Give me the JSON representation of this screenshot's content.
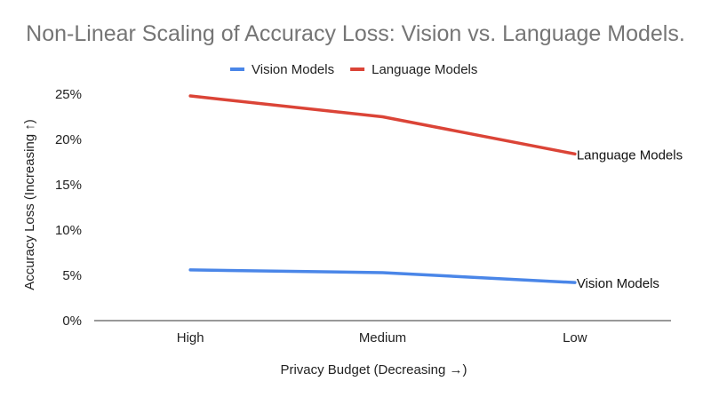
{
  "chart_data": {
    "type": "line",
    "title": "Non-Linear Scaling of Accuracy Loss: Vision vs. Language Models.",
    "xlabel": "Privacy Budget (Decreasing →)",
    "ylabel": "Accuracy Loss (Increasing ↑)",
    "categories": [
      "High",
      "Medium",
      "Low"
    ],
    "ylim": [
      0,
      25
    ],
    "yticks": [
      "0%",
      "5%",
      "10%",
      "15%",
      "20%",
      "25%"
    ],
    "grid": false,
    "legend_position": "top",
    "series": [
      {
        "name": "Vision Models",
        "values": [
          5.6,
          5.3,
          4.2
        ],
        "color": "#4A86E8",
        "end_label": "Vision Models"
      },
      {
        "name": "Language Models",
        "values": [
          24.8,
          22.5,
          18.4
        ],
        "color": "#DB4437",
        "end_label": "Language Models"
      }
    ]
  }
}
